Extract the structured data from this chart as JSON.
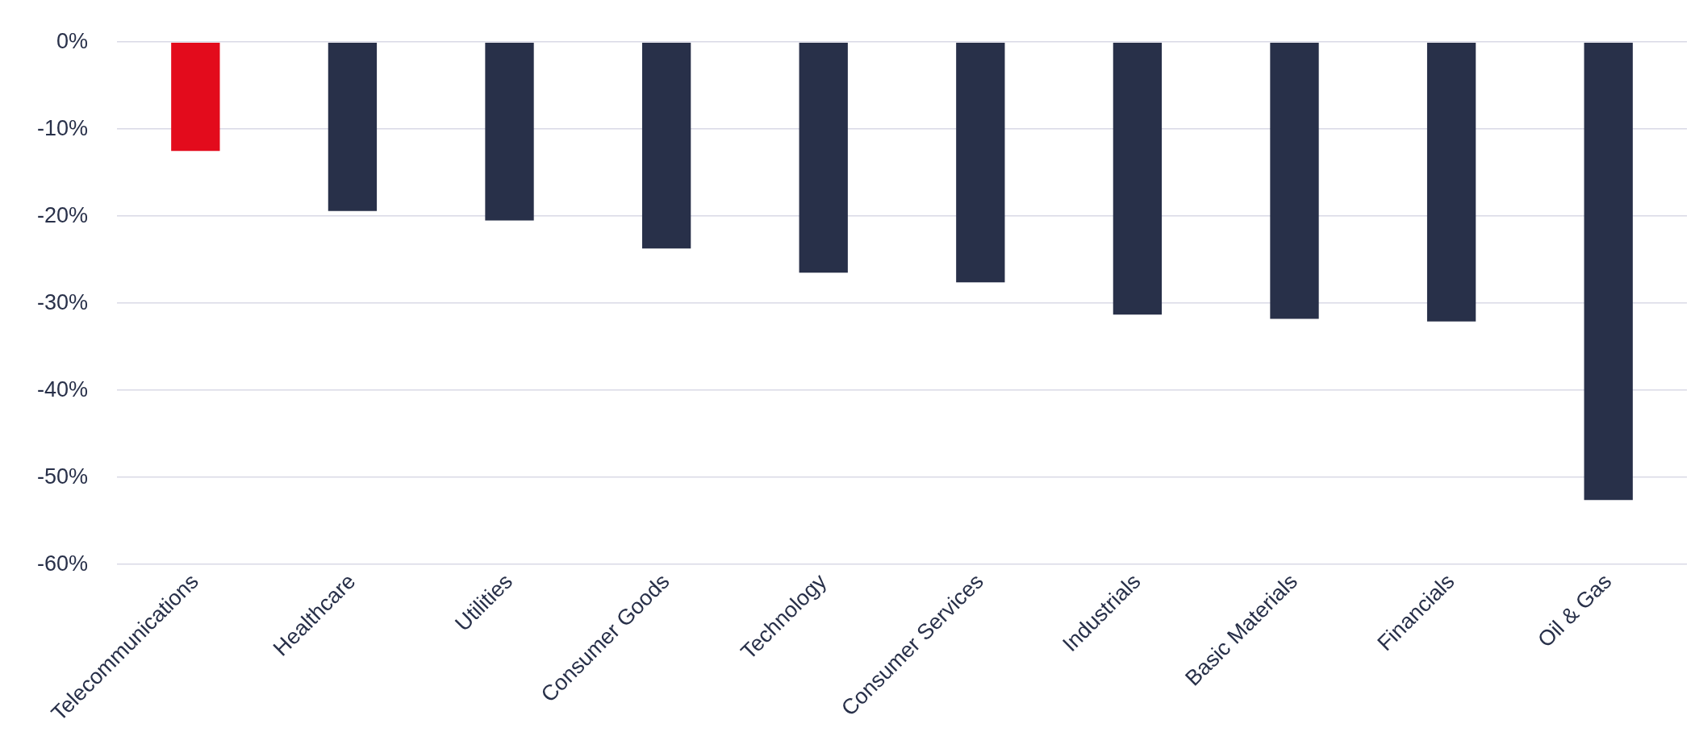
{
  "chart_data": {
    "type": "bar",
    "categories": [
      "Telecommunications",
      "Healthcare",
      "Utilities",
      "Consumer Goods",
      "Technology",
      "Consumer Services",
      "Industrials",
      "Basic Materials",
      "Financials",
      "Oil & Gas"
    ],
    "values": [
      -12.5,
      -19.4,
      -20.5,
      -23.7,
      -26.5,
      -27.6,
      -31.3,
      -31.8,
      -32.1,
      -52.6
    ],
    "colors": [
      "#e30b1c",
      "#283049",
      "#283049",
      "#283049",
      "#283049",
      "#283049",
      "#283049",
      "#283049",
      "#283049",
      "#283049"
    ],
    "ylim": [
      -60,
      0
    ],
    "yticks": [
      {
        "value": 0,
        "label": "0%"
      },
      {
        "value": -10,
        "label": "-10%"
      },
      {
        "value": -20,
        "label": "-20%"
      },
      {
        "value": -30,
        "label": "-30%"
      },
      {
        "value": -40,
        "label": "-40%"
      },
      {
        "value": -50,
        "label": "-50%"
      },
      {
        "value": -60,
        "label": "-60%"
      }
    ],
    "grid": "y"
  }
}
